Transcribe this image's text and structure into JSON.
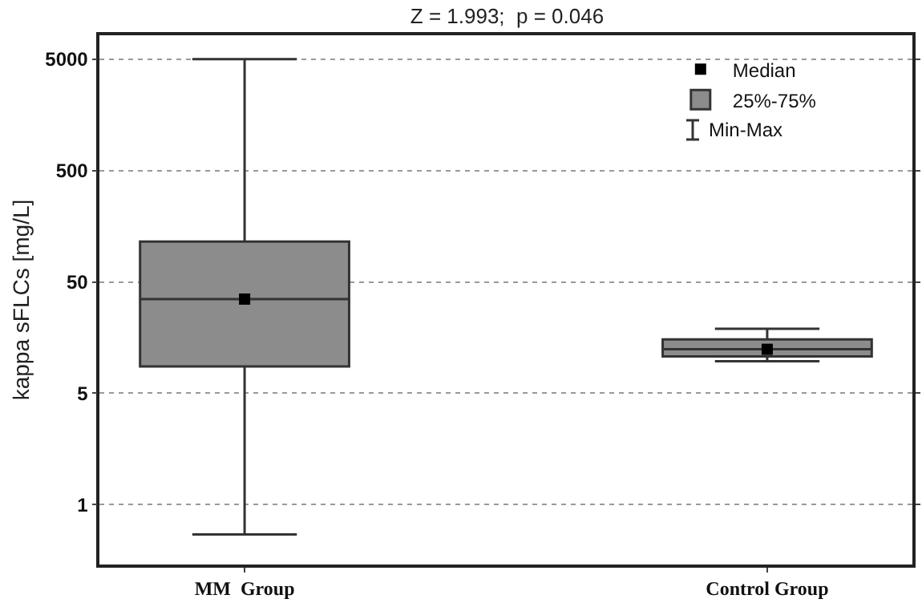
{
  "chart_data": {
    "type": "box",
    "title": "Z = 1.993;  p = 0.046",
    "ylabel": "kappa sFLCs [mg/L]",
    "categories": [
      "MM  Group",
      "Control Group"
    ],
    "log": "y",
    "ylim": [
      0.145,
      8180
    ],
    "yticks": [
      {
        "value": 0.5,
        "label": "1"
      },
      5,
      50,
      500,
      5000
    ],
    "grid": "y",
    "legend": "top right",
    "series": [
      {
        "name": "25%-75%",
        "color": "#8c8c8c",
        "boxes": [
          {
            "low": 0.27,
            "q1": 8.7,
            "median": 35,
            "q3": 115,
            "high": 5000
          },
          {
            "low": 9.7,
            "q1": 10.7,
            "median": 12.4,
            "q3": 15.2,
            "high": 19
          }
        ]
      },
      {
        "type": "scatter",
        "name": "Median",
        "color": "#000000",
        "marker": "square",
        "values": [
          35,
          12.4
        ]
      }
    ],
    "annotations": [
      "Min-Max"
    ]
  }
}
